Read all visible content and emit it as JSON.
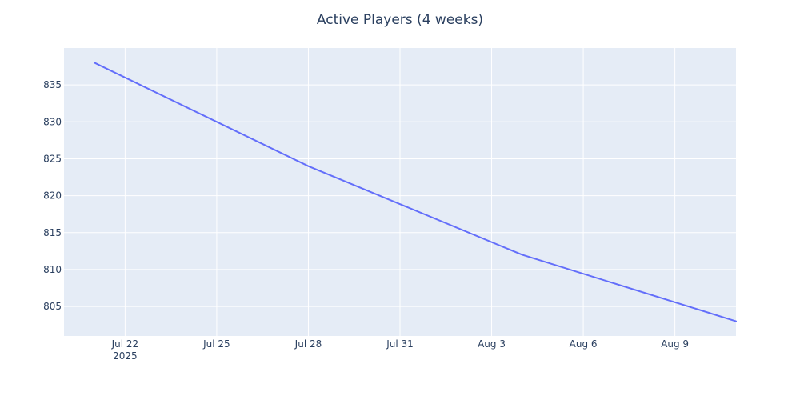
{
  "chart_data": {
    "type": "line",
    "title": "Active Players (4 weeks)",
    "xlabel": "",
    "ylabel": "",
    "x_axis_kind": "date",
    "xlim": [
      "2025-07-20",
      "2025-08-11"
    ],
    "ylim": [
      801,
      840
    ],
    "x_ticks": [
      {
        "date": "2025-07-22",
        "label": "Jul 22",
        "sublabel": "2025"
      },
      {
        "date": "2025-07-25",
        "label": "Jul 25",
        "sublabel": ""
      },
      {
        "date": "2025-07-28",
        "label": "Jul 28",
        "sublabel": ""
      },
      {
        "date": "2025-07-31",
        "label": "Jul 31",
        "sublabel": ""
      },
      {
        "date": "2025-08-03",
        "label": "Aug 3",
        "sublabel": ""
      },
      {
        "date": "2025-08-06",
        "label": "Aug 6",
        "sublabel": ""
      },
      {
        "date": "2025-08-09",
        "label": "Aug 9",
        "sublabel": ""
      }
    ],
    "y_ticks": [
      805,
      810,
      815,
      820,
      825,
      830,
      835
    ],
    "grid": true,
    "legend": "none",
    "series": [
      {
        "color": "#636efa",
        "points": [
          {
            "x": "2025-07-21",
            "y": 838
          },
          {
            "x": "2025-07-28",
            "y": 824
          },
          {
            "x": "2025-08-04",
            "y": 812
          },
          {
            "x": "2025-08-11",
            "y": 803
          }
        ]
      }
    ]
  },
  "colors": {
    "plot_background": "#e5ecf6",
    "grid": "#ffffff",
    "text": "#2a3f5f"
  }
}
